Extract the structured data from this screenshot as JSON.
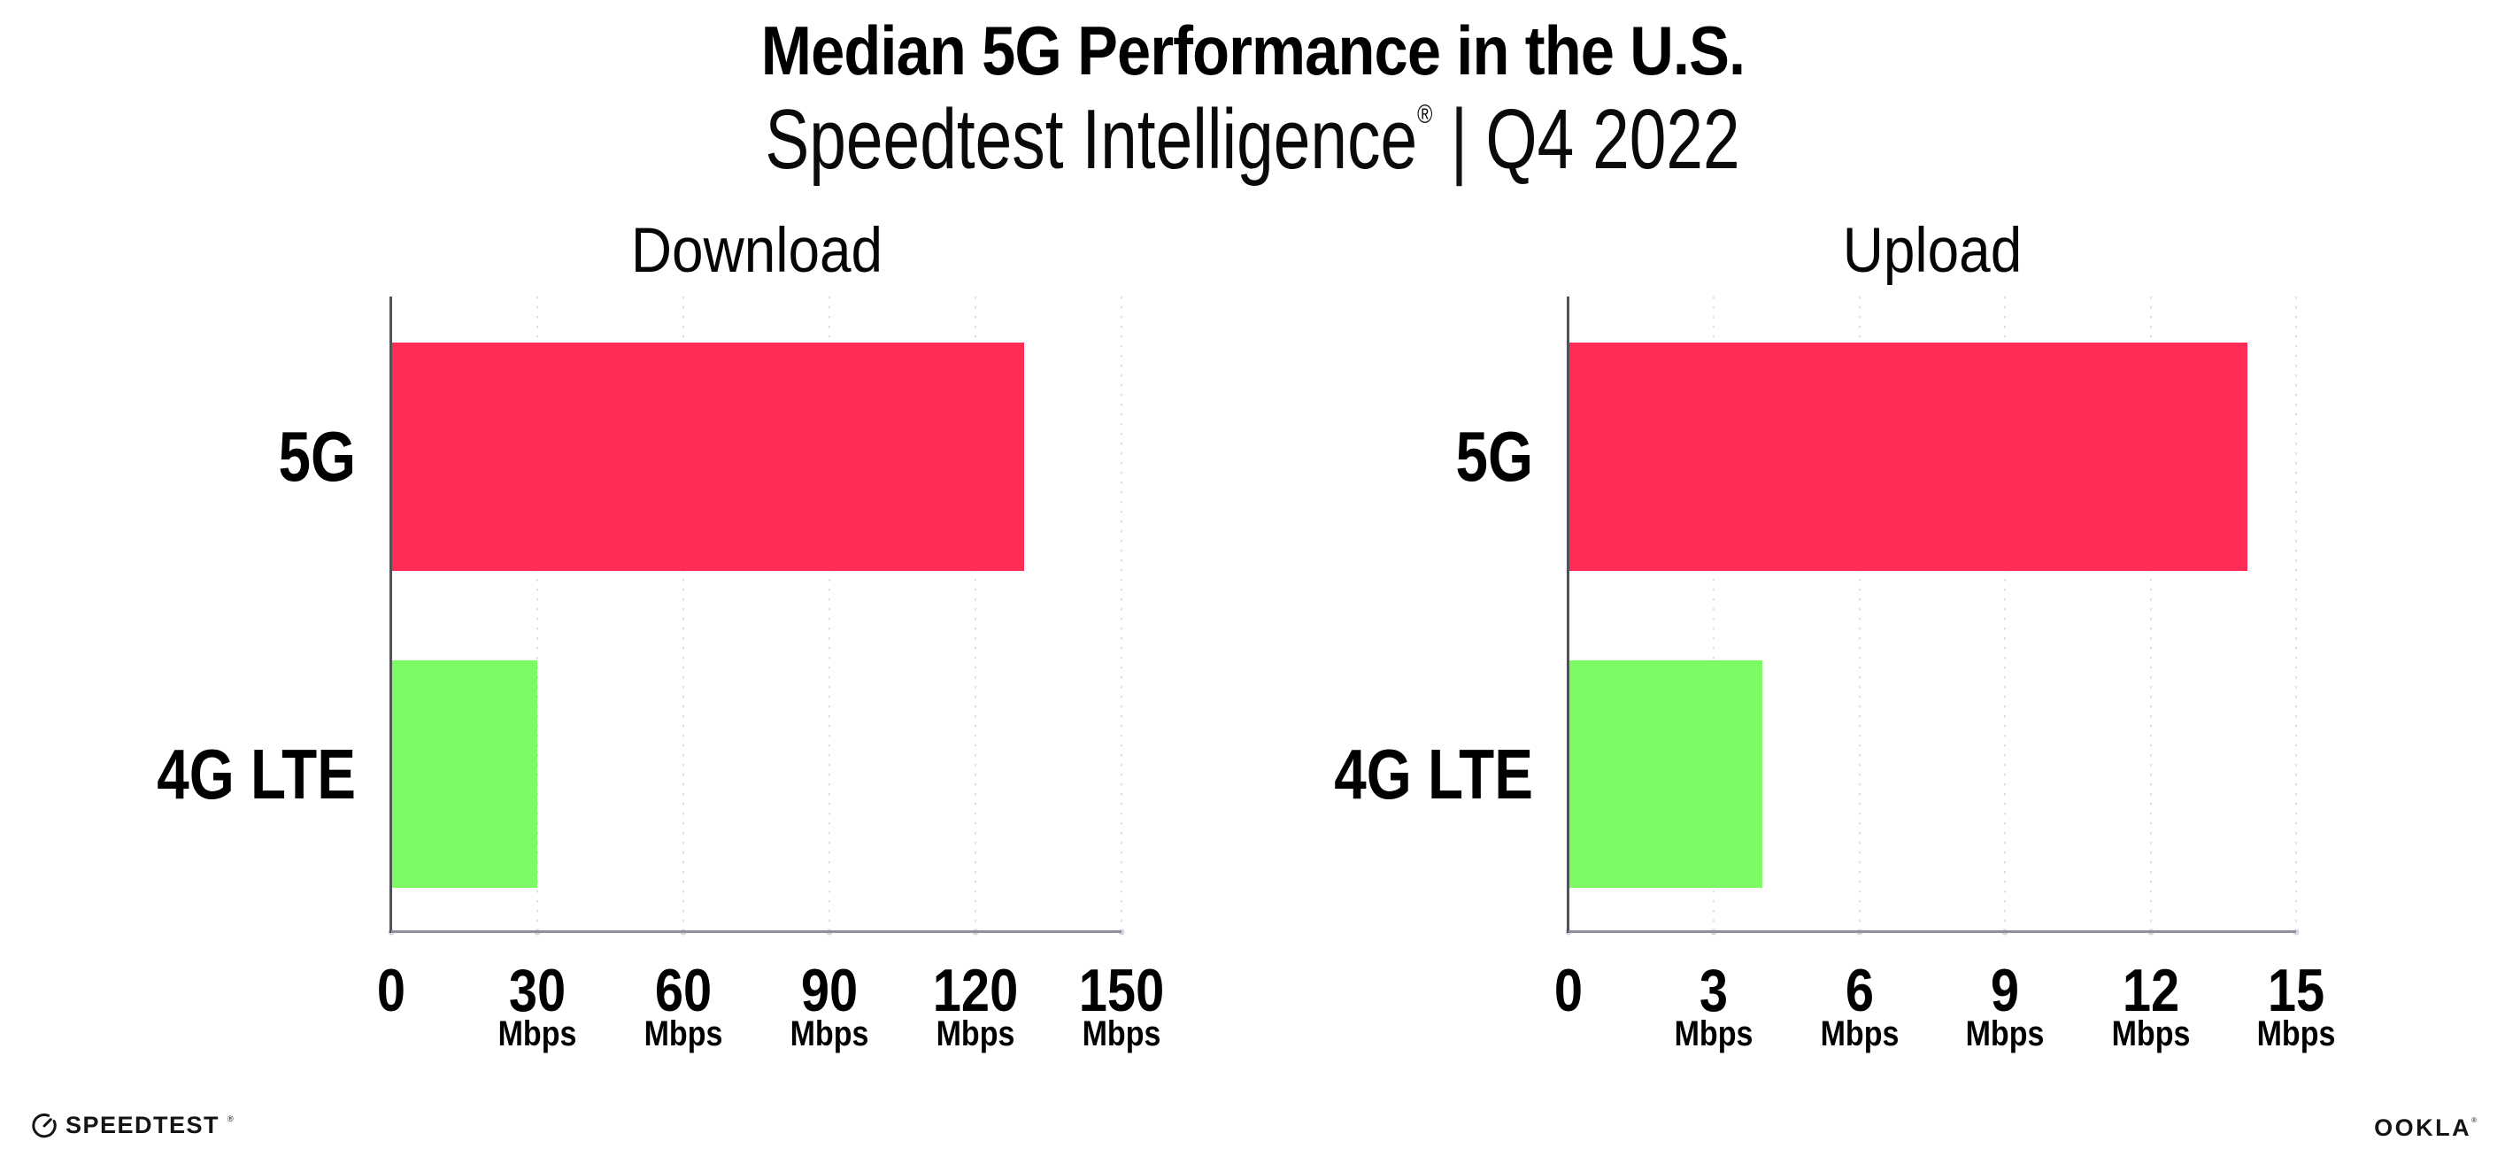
{
  "header": {
    "title": "Median 5G Performance in the U.S.",
    "subtitle_brand": "Speedtest Intelligence",
    "subtitle_reg": "®",
    "subtitle_sep": "|",
    "subtitle_period": "Q4 2022"
  },
  "chart_data": [
    {
      "type": "bar",
      "orientation": "horizontal",
      "title": "Download",
      "categories": [
        "5G",
        "4G LTE"
      ],
      "values": [
        130,
        30
      ],
      "unit": "Mbps",
      "xlim": [
        0,
        150
      ],
      "xticks": [
        0,
        30,
        60,
        90,
        120,
        150
      ],
      "bar_colors": [
        "#FF2D55",
        "#7EFA64"
      ],
      "grid": "vertical-dotted",
      "legend": "none"
    },
    {
      "type": "bar",
      "orientation": "horizontal",
      "title": "Upload",
      "categories": [
        "5G",
        "4G LTE"
      ],
      "values": [
        14,
        4
      ],
      "unit": "Mbps",
      "xlim": [
        0,
        15
      ],
      "xticks": [
        0,
        3,
        6,
        9,
        12,
        15
      ],
      "bar_colors": [
        "#FF2D55",
        "#7EFA64"
      ],
      "grid": "vertical-dotted",
      "legend": "none"
    }
  ],
  "footer": {
    "speedtest_label": "SPEEDTEST",
    "speedtest_reg": "®",
    "ookla_label": "OOKLA",
    "ookla_reg": "®"
  },
  "colors": {
    "bar_5g": "#FF2D55",
    "bar_4g_lte": "#7EFA64",
    "gridline": "#DEDEE8",
    "x_axis": "#90909A",
    "y_axis": "#52525A",
    "text": "#000000"
  }
}
